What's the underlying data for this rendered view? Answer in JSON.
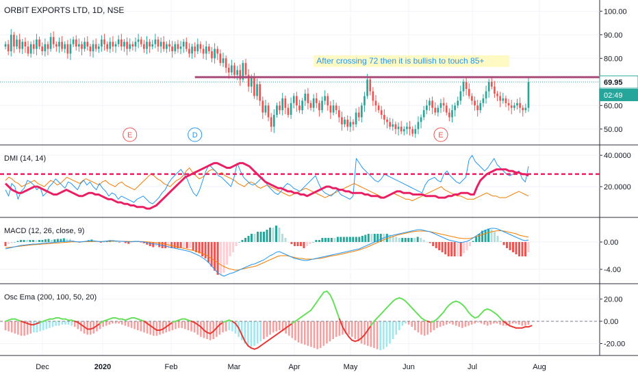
{
  "chart_data": {
    "type": "candlestick",
    "title": "ORBIT EXPORTS LTD, 1D, NSE",
    "colors": {
      "up": "#26a69a",
      "down": "#ef5350",
      "dmi_adx": "#e91e63",
      "dmi_plus": "#2196f3",
      "dmi_minus": "#f57c00",
      "macd_line": "#2196f3",
      "macd_signal": "#f57c00",
      "osc_up": "#66e05a",
      "osc_down": "#e53935",
      "resistance": "#a94a78",
      "annotation_bg": "#fff9c4",
      "annotation_text": "#2196f3"
    },
    "x_axis": {
      "labels": [
        "Dec",
        "2020",
        "Feb",
        "Mar",
        "Apr",
        "May",
        "Jun",
        "Jul",
        "Aug"
      ]
    },
    "price": {
      "ylim": [
        45,
        103
      ],
      "ticks": [
        "100.00",
        "90.00",
        "80.00",
        "70.00",
        "60.00",
        "50.00"
      ],
      "tick_values": [
        100,
        90,
        80,
        70,
        60,
        50
      ],
      "last_price_label": "69.95",
      "last_price": 69.95,
      "countdown_label": "02:49",
      "resistance_level": 72,
      "annotation": "After crossing 72 then it is bullish to touch 85+",
      "closes": [
        86,
        83,
        90,
        85,
        88,
        84,
        87,
        85,
        82,
        86,
        84,
        88,
        85,
        83,
        86,
        84,
        89,
        86,
        85,
        87,
        84,
        86,
        82,
        86,
        88,
        85,
        86,
        84,
        87,
        85,
        83,
        86,
        84,
        85,
        88,
        86,
        84,
        87,
        85,
        86,
        88,
        85,
        87,
        84,
        86,
        85,
        87,
        88,
        86,
        84,
        87,
        85,
        86,
        88,
        85,
        87,
        84,
        86,
        85,
        83,
        86,
        84,
        85,
        87,
        84,
        82,
        85,
        83,
        86,
        84,
        82,
        85,
        83,
        80,
        84,
        82,
        78,
        80,
        76,
        74,
        77,
        73,
        75,
        71,
        78,
        73,
        68,
        72,
        64,
        69,
        62,
        57,
        60,
        55,
        51,
        56,
        60,
        58,
        63,
        59,
        56,
        61,
        64,
        60,
        58,
        62,
        65,
        61,
        59,
        63,
        61,
        58,
        62,
        64,
        60,
        57,
        60,
        58,
        55,
        52,
        54,
        51,
        53,
        52,
        57,
        55,
        60,
        64,
        71,
        66,
        62,
        60,
        58,
        56,
        54,
        53,
        51,
        52,
        50,
        51,
        49,
        50,
        51,
        50,
        48,
        50,
        53,
        55,
        58,
        60,
        62,
        59,
        57,
        59,
        61,
        60,
        57,
        55,
        58,
        60,
        62,
        66,
        70,
        67,
        64,
        62,
        60,
        58,
        61,
        63,
        66,
        70,
        68,
        65,
        64,
        62,
        63,
        61,
        60,
        59,
        60,
        61,
        59,
        58,
        59,
        69.95
      ],
      "events": [
        {
          "label": "E",
          "index": 44
        },
        {
          "label": "D",
          "index": 67
        },
        {
          "label": "E",
          "index": 154
        }
      ]
    },
    "dmi": {
      "title": "DMI (14, 14)",
      "ylim": [
        3,
        44
      ],
      "ticks": [
        "40.0000",
        "20.0000"
      ],
      "tick_values": [
        40,
        20
      ],
      "threshold": 28,
      "adx": [
        22,
        20,
        18,
        17,
        16,
        16,
        17,
        18,
        19,
        20,
        20,
        19,
        18,
        17,
        16,
        15,
        15,
        16,
        17,
        18,
        17,
        16,
        15,
        14,
        14,
        15,
        16,
        16,
        15,
        15,
        14,
        13,
        12,
        12,
        11,
        10,
        10,
        9,
        9,
        8,
        8,
        7,
        7,
        7,
        6,
        6,
        7,
        8,
        10,
        12,
        14,
        16,
        18,
        20,
        22,
        24,
        26,
        27,
        28,
        29,
        30,
        31,
        32,
        33,
        34,
        35,
        35,
        34,
        33,
        32,
        32,
        33,
        34,
        35,
        35,
        34,
        33,
        31,
        29,
        27,
        25,
        23,
        22,
        21,
        20,
        19,
        19,
        18,
        17,
        17,
        16,
        16,
        15,
        15,
        14,
        15,
        16,
        17,
        18,
        19,
        20,
        20,
        19,
        19,
        18,
        18,
        17,
        17,
        16,
        16,
        16,
        16,
        15,
        15,
        14,
        14,
        14,
        13,
        13,
        14,
        15,
        16,
        17,
        17,
        16,
        16,
        16,
        15,
        15,
        15,
        15,
        14,
        14,
        14,
        14,
        13,
        13,
        13,
        14,
        14,
        15,
        15,
        16,
        16,
        16,
        15,
        15,
        20,
        24,
        26,
        28,
        29,
        30,
        31,
        31,
        31,
        31,
        30,
        30,
        29,
        29,
        28,
        28,
        27
      ],
      "plus_di": [
        18,
        14,
        22,
        20,
        12,
        17,
        19,
        24,
        23,
        21,
        18,
        20,
        14,
        16,
        20,
        22,
        25,
        23,
        21,
        19,
        23,
        22,
        20,
        18,
        22,
        24,
        21,
        23,
        20,
        18,
        22,
        19,
        17,
        14,
        16,
        15,
        12,
        14,
        13,
        12,
        11,
        10,
        12,
        13,
        14,
        12,
        10,
        9,
        11,
        13,
        16,
        18,
        22,
        25,
        27,
        29,
        31,
        28,
        25,
        20,
        16,
        14,
        18,
        24,
        30,
        34,
        32,
        30,
        27,
        26,
        24,
        22,
        20,
        26,
        35,
        30,
        26,
        24,
        22,
        21,
        22,
        24,
        26,
        23,
        20,
        18,
        16,
        15,
        17,
        20,
        22,
        21,
        19,
        18,
        17,
        19,
        21,
        23,
        25,
        27,
        22,
        18,
        16,
        15,
        14,
        16,
        18,
        15,
        14,
        13,
        12,
        14,
        38,
        35,
        32,
        30,
        28,
        26,
        24,
        23,
        25,
        28,
        27,
        26,
        25,
        24,
        23,
        22,
        21,
        20,
        19,
        18,
        17,
        16,
        21,
        24,
        25,
        26,
        24,
        23,
        28,
        30,
        27,
        25,
        23,
        22,
        24,
        26,
        37,
        40,
        36,
        34,
        32,
        30,
        32,
        35,
        38,
        34,
        32,
        30,
        28,
        27,
        28,
        29,
        30,
        25,
        23,
        33
      ],
      "minus_di": [
        24,
        26,
        25,
        23,
        22,
        20,
        21,
        22,
        23,
        24,
        22,
        21,
        20,
        22,
        24,
        23,
        21,
        22,
        24,
        26,
        25,
        24,
        23,
        22,
        24,
        25,
        24,
        23,
        22,
        21,
        23,
        24,
        22,
        21,
        20,
        22,
        23,
        21,
        20,
        19,
        18,
        20,
        22,
        24,
        26,
        28,
        27,
        25,
        24,
        22,
        21,
        20,
        22,
        24,
        25,
        27,
        30,
        32,
        29,
        27,
        25,
        26,
        28,
        30,
        31,
        30,
        28,
        29,
        27,
        26,
        25,
        24,
        22,
        21,
        20,
        22,
        23,
        22,
        20,
        19,
        20,
        21,
        20,
        19,
        18,
        17,
        16,
        15,
        14,
        15,
        16,
        17,
        18,
        19,
        18,
        17,
        16,
        15,
        14,
        13,
        14,
        15,
        16,
        17,
        18,
        19,
        20,
        21,
        22,
        21,
        20,
        19,
        18,
        17,
        16,
        15,
        14,
        13,
        14,
        15,
        16,
        15,
        14,
        13,
        12,
        12,
        11,
        12,
        13,
        14,
        15,
        16,
        17,
        18,
        19,
        20,
        18,
        17,
        16,
        15,
        14,
        14,
        13,
        12,
        12,
        12,
        13,
        14,
        15,
        16,
        15,
        14,
        14,
        13,
        13,
        13,
        14,
        15,
        16,
        17,
        16,
        15,
        14
      ],
      "line_colors": [
        "adx",
        "plus_di",
        "minus_di"
      ]
    },
    "macd": {
      "title": "MACD (12, 26, close, 9)",
      "ylim": [
        -5.5,
        3.0
      ],
      "ticks": [
        "0.00",
        "-4.00"
      ],
      "tick_values": [
        0,
        -4
      ],
      "macd": [
        -1.0,
        -0.9,
        -0.8,
        -0.7,
        -0.6,
        -0.5,
        -0.45,
        -0.4,
        -0.35,
        -0.3,
        -0.3,
        -0.25,
        -0.2,
        -0.15,
        -0.1,
        -0.1,
        -0.05,
        0.0,
        0.05,
        0.1,
        0.1,
        0.15,
        0.1,
        0.05,
        0.0,
        0.05,
        0.1,
        0.15,
        0.2,
        0.15,
        0.1,
        0.05,
        0.1,
        0.15,
        0.2,
        0.2,
        0.15,
        0.1,
        0.1,
        0.05,
        0.0,
        0.05,
        0.1,
        0.1,
        0.05,
        0.0,
        -0.1,
        -0.2,
        -0.3,
        -0.3,
        -0.4,
        -0.5,
        -0.6,
        -0.7,
        -0.8,
        -0.9,
        -1.0,
        -1.1,
        -1.2,
        -1.3,
        -1.4,
        -1.6,
        -1.8,
        -2.0,
        -2.3,
        -2.6,
        -3.0,
        -3.5,
        -4.0,
        -4.5,
        -4.8,
        -5.0,
        -4.8,
        -4.6,
        -4.5,
        -4.3,
        -4.1,
        -3.9,
        -3.7,
        -3.5,
        -3.3,
        -3.2,
        -3.0,
        -2.8,
        -2.6,
        -2.3,
        -2.0,
        -1.8,
        -1.5,
        -1.4,
        -1.6,
        -1.8,
        -2.0,
        -2.2,
        -2.4,
        -2.5,
        -2.6,
        -2.7,
        -2.7,
        -2.6,
        -2.5,
        -2.4,
        -2.3,
        -2.2,
        -2.1,
        -2.0,
        -1.9,
        -1.8,
        -1.7,
        -1.6,
        -1.5,
        -1.4,
        -1.3,
        -1.2,
        -1.1,
        -1.0,
        -0.8,
        -0.6,
        -0.4,
        -0.2,
        0.0,
        0.2,
        0.4,
        0.6,
        0.8,
        0.9,
        1.0,
        1.1,
        1.2,
        1.3,
        1.4,
        1.5,
        1.6,
        1.7,
        1.8,
        1.8,
        1.7,
        1.6,
        1.5,
        1.3,
        1.1,
        0.9,
        0.7,
        0.5,
        0.3,
        0.2,
        0.1,
        0.0,
        -0.1,
        0.0,
        0.1,
        0.3,
        0.6,
        0.9,
        1.2,
        1.5,
        1.7,
        1.9,
        2.0,
        2.0,
        1.9,
        1.7,
        1.5,
        1.3,
        1.1,
        0.9,
        0.7,
        0.5,
        0.3,
        0.2,
        0.3
      ],
      "signal": [
        -0.8,
        -0.8,
        -0.75,
        -0.7,
        -0.65,
        -0.6,
        -0.55,
        -0.5,
        -0.45,
        -0.4,
        -0.38,
        -0.35,
        -0.3,
        -0.28,
        -0.25,
        -0.2,
        -0.18,
        -0.15,
        -0.1,
        -0.08,
        -0.05,
        0.0,
        0.02,
        0.03,
        0.03,
        0.04,
        0.05,
        0.06,
        0.08,
        0.09,
        0.09,
        0.08,
        0.09,
        0.1,
        0.11,
        0.12,
        0.12,
        0.12,
        0.11,
        0.1,
        0.09,
        0.08,
        0.08,
        0.08,
        0.07,
        0.06,
        0.03,
        0.0,
        -0.05,
        -0.1,
        -0.15,
        -0.2,
        -0.3,
        -0.4,
        -0.5,
        -0.6,
        -0.7,
        -0.8,
        -0.9,
        -1.0,
        -1.1,
        -1.2,
        -1.3,
        -1.45,
        -1.6,
        -1.8,
        -2.0,
        -2.3,
        -2.6,
        -2.9,
        -3.2,
        -3.5,
        -3.7,
        -3.9,
        -4.0,
        -4.1,
        -4.1,
        -4.0,
        -3.9,
        -3.8,
        -3.7,
        -3.6,
        -3.5,
        -3.3,
        -3.1,
        -2.9,
        -2.7,
        -2.5,
        -2.3,
        -2.1,
        -2.0,
        -2.0,
        -2.0,
        -2.1,
        -2.2,
        -2.3,
        -2.4,
        -2.4,
        -2.5,
        -2.5,
        -2.5,
        -2.5,
        -2.4,
        -2.4,
        -2.3,
        -2.2,
        -2.1,
        -2.0,
        -1.95,
        -1.85,
        -1.75,
        -1.65,
        -1.55,
        -1.45,
        -1.35,
        -1.25,
        -1.1,
        -0.95,
        -0.8,
        -0.6,
        -0.4,
        -0.2,
        0.0,
        0.2,
        0.4,
        0.55,
        0.7,
        0.85,
        1.0,
        1.1,
        1.2,
        1.3,
        1.4,
        1.5,
        1.55,
        1.6,
        1.6,
        1.6,
        1.55,
        1.5,
        1.4,
        1.3,
        1.2,
        1.1,
        1.0,
        0.9,
        0.8,
        0.7,
        0.6,
        0.55,
        0.5,
        0.5,
        0.55,
        0.65,
        0.8,
        0.95,
        1.1,
        1.25,
        1.4,
        1.5,
        1.6,
        1.65,
        1.65,
        1.6,
        1.5,
        1.4,
        1.3,
        1.2,
        1.0,
        0.9,
        0.8,
        0.7
      ]
    },
    "osc_ema": {
      "title": "Osc Ema (200, 100, 50, 20)",
      "ylim": [
        -27,
        30
      ],
      "ticks": [
        "20.00",
        "0.00",
        "-20.00"
      ],
      "tick_values": [
        20,
        0,
        -20
      ],
      "osc": [
        0,
        1,
        2,
        2,
        1,
        0,
        -1,
        -2,
        -3,
        -3,
        -2,
        -1,
        0,
        1,
        2,
        2,
        3,
        3,
        2,
        2,
        1,
        1,
        0,
        -1,
        -3,
        -5,
        -7,
        -7,
        -6,
        -4,
        -2,
        0,
        1,
        2,
        3,
        3,
        2,
        2,
        1,
        2,
        3,
        3,
        2,
        1,
        0,
        -2,
        -4,
        -6,
        -8,
        -8,
        -7,
        -5,
        -3,
        -1,
        0,
        1,
        2,
        2,
        1,
        0,
        -1,
        -3,
        -5,
        -8,
        -10,
        -11,
        -9,
        -6,
        -3,
        -1,
        0,
        1,
        0,
        -2,
        -6,
        -12,
        -18,
        -22,
        -24,
        -25,
        -24,
        -22,
        -20,
        -18,
        -16,
        -14,
        -12,
        -10,
        -8,
        -6,
        -4,
        -2,
        0,
        2,
        4,
        6,
        8,
        10,
        14,
        18,
        22,
        26,
        27,
        24,
        18,
        10,
        2,
        -5,
        -10,
        -14,
        -17,
        -18,
        -17,
        -15,
        -12,
        -8,
        -4,
        0,
        3,
        6,
        9,
        12,
        15,
        18,
        20,
        21,
        20,
        18,
        15,
        12,
        9,
        6,
        3,
        1,
        0,
        -1,
        0,
        2,
        5,
        8,
        12,
        15,
        17,
        18,
        17,
        15,
        12,
        8,
        5,
        3,
        4,
        7,
        10,
        11,
        10,
        8,
        6,
        3,
        0,
        -2,
        -4,
        -5,
        -6,
        -6,
        -6,
        -5,
        -5,
        -4
      ],
      "hist": [
        -8,
        -9,
        -10,
        -11,
        -12,
        -13,
        -13,
        -12,
        -11,
        -10,
        -10,
        -9,
        -8,
        -7,
        -6,
        -5,
        -4,
        -4,
        -3,
        -3,
        -3,
        -4,
        -5,
        -7,
        -9,
        -11,
        -12,
        -12,
        -11,
        -9,
        -7,
        -5,
        -4,
        -3,
        -2,
        -2,
        -2,
        -3,
        -4,
        -5,
        -6,
        -7,
        -8,
        -9,
        -10,
        -11,
        -12,
        -13,
        -13,
        -12,
        -11,
        -10,
        -9,
        -8,
        -7,
        -6,
        -6,
        -7,
        -8,
        -9,
        -10,
        -12,
        -14,
        -15,
        -16,
        -17,
        -16,
        -14,
        -12,
        -10,
        -9,
        -8,
        -9,
        -11,
        -14,
        -17,
        -20,
        -22,
        -23,
        -22,
        -20,
        -18,
        -16,
        -14,
        -12,
        -10,
        -9,
        -8,
        -9,
        -11,
        -13,
        -15,
        -17,
        -19,
        -20,
        -21,
        -22,
        -23,
        -24,
        -25,
        -24,
        -22,
        -20,
        -18,
        -16,
        -14,
        -13,
        -12,
        -11,
        -12,
        -14,
        -16,
        -18,
        -20,
        -21,
        -22,
        -23,
        -24,
        -25,
        -26,
        -25,
        -23,
        -20,
        -16,
        -12,
        -8,
        -4,
        -2,
        -3,
        -5,
        -8,
        -10,
        -12,
        -13,
        -12,
        -10,
        -8,
        -6,
        -5,
        -4,
        -3,
        -2,
        -3,
        -4,
        -5,
        -6,
        -5,
        -4,
        -3,
        -2,
        -1,
        -2,
        -3,
        -4,
        -3,
        -2,
        -2,
        -3,
        -4,
        -4,
        -3,
        -2,
        -2,
        -3,
        -4,
        -4,
        -3
      ]
    }
  }
}
